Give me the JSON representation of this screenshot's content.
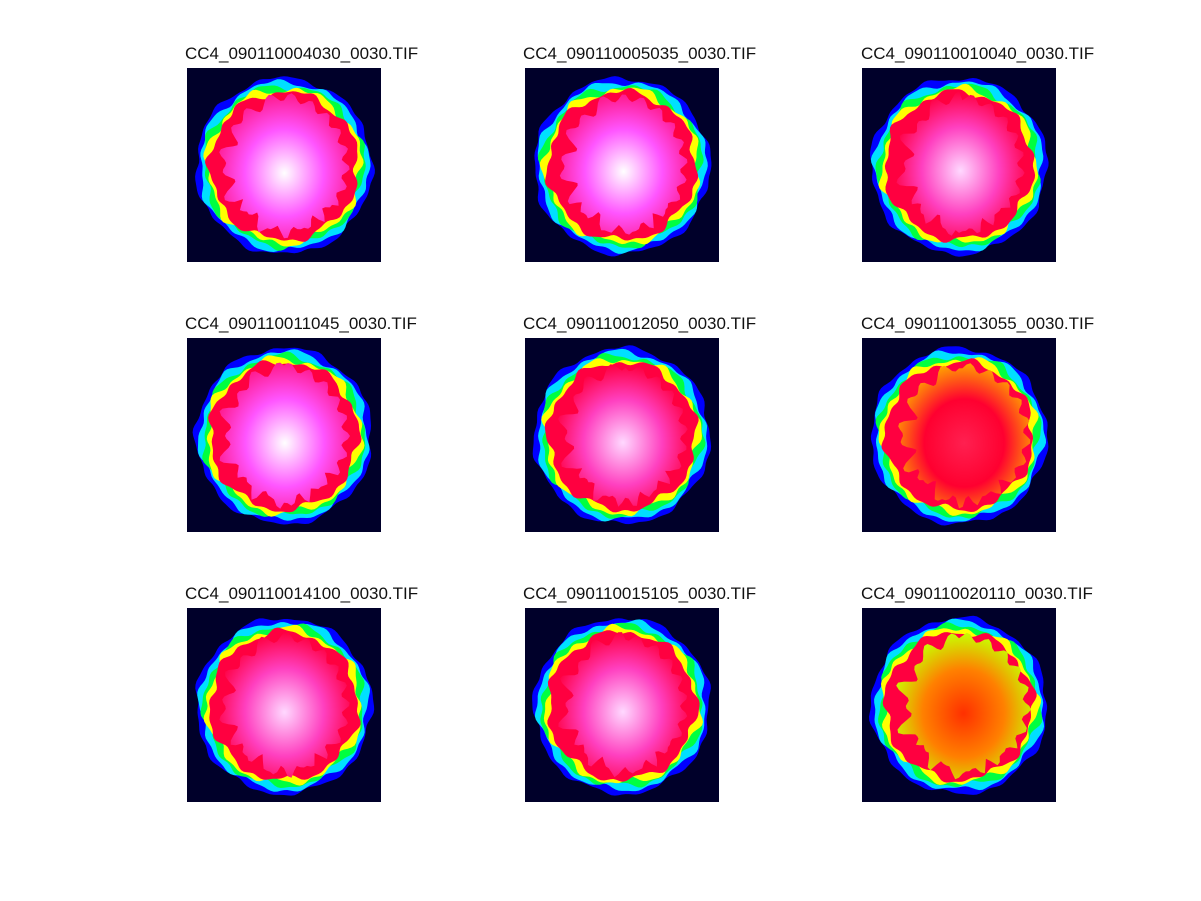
{
  "figure": {
    "panels": [
      {
        "title": "CC4_090110004030_0030.TIF",
        "palette": "hot-pink"
      },
      {
        "title": "CC4_090110005035_0030.TIF",
        "palette": "hot-pink"
      },
      {
        "title": "CC4_090110010040_0030.TIF",
        "palette": "pink-red"
      },
      {
        "title": "CC4_090110011045_0030.TIF",
        "palette": "hot-pink"
      },
      {
        "title": "CC4_090110012050_0030.TIF",
        "palette": "pink-red"
      },
      {
        "title": "CC4_090110013055_0030.TIF",
        "palette": "red"
      },
      {
        "title": "CC4_090110014100_0030.TIF",
        "palette": "pink-red"
      },
      {
        "title": "CC4_090110015105_0030.TIF",
        "palette": "pink-red"
      },
      {
        "title": "CC4_090110020110_0030.TIF",
        "palette": "orange"
      }
    ],
    "colors": {
      "background": "#00002a",
      "rim_blue": "#0000ff",
      "rim_cyan": "#00e0ff",
      "rim_green": "#00ff40",
      "rim_yellow": "#ffff00",
      "hot_red": "#ff0040",
      "hot_pink": "#ff40ff",
      "hot_white": "#ffffff",
      "warm_orange": "#ff6000"
    }
  }
}
